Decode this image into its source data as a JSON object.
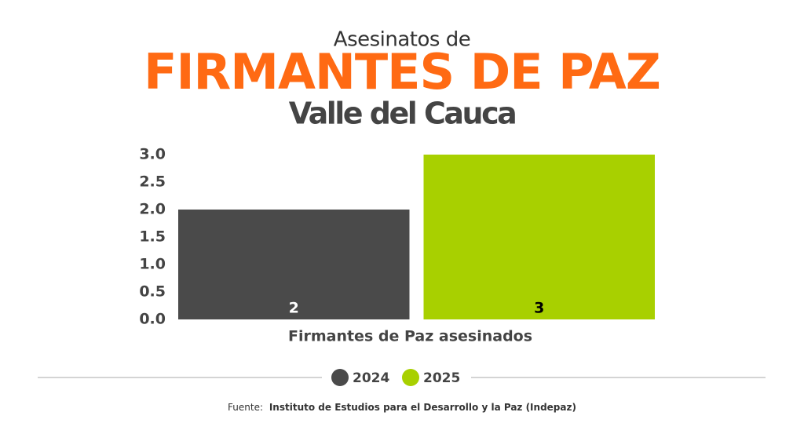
{
  "chart_data": {
    "type": "bar",
    "title_top": "Asesinatos de",
    "title": "FIRMANTES DE PAZ",
    "subtitle": "Valle del Cauca",
    "categories": [
      "Firmantes de Paz asesinados"
    ],
    "series": [
      {
        "name": "2024",
        "color": "#4a4a4a",
        "values": [
          2
        ]
      },
      {
        "name": "2025",
        "color": "#a8d000",
        "values": [
          3
        ]
      }
    ],
    "ylim": [
      0,
      3
    ],
    "yticks": [
      {
        "value": 0,
        "label": "0.0"
      },
      {
        "value": 0.5,
        "label": "0.5"
      },
      {
        "value": 1,
        "label": "1.0"
      },
      {
        "value": 1.5,
        "label": "1.5"
      },
      {
        "value": 2,
        "label": "2.0"
      },
      {
        "value": 2.5,
        "label": "2.5"
      },
      {
        "value": 3,
        "label": "3.0"
      }
    ],
    "grid": false,
    "source_label": "Fuente:",
    "source": "Instituto de Estudios para el Desarrollo y la Paz (Indepaz)"
  }
}
